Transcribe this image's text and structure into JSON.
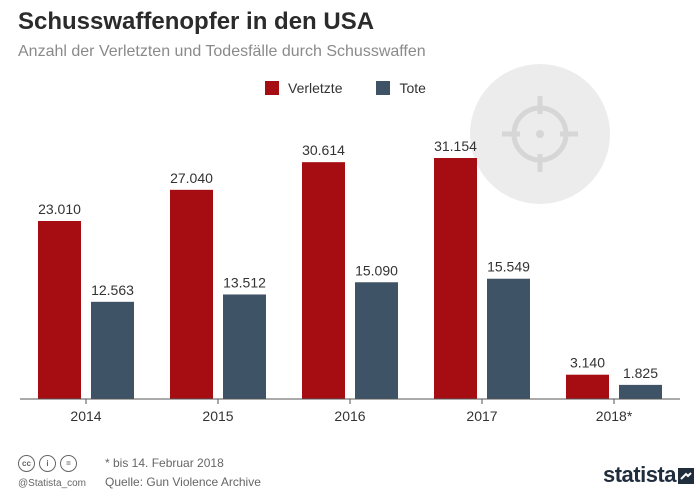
{
  "header": {
    "title": "Schusswaffenopfer in den USA",
    "subtitle": "Anzahl der Verletzten und Todesfälle durch Schusswaffen"
  },
  "colors": {
    "verletzte": "#a50d13",
    "tote": "#3e5366",
    "axis": "#555555",
    "watermark": "#e8e8e8"
  },
  "chart_data": {
    "type": "bar",
    "categories": [
      "2014",
      "2015",
      "2016",
      "2017",
      "2018*"
    ],
    "series": [
      {
        "name": "Verletzte",
        "values": [
          23010,
          27040,
          30614,
          31154,
          3140
        ],
        "labels": [
          "23.010",
          "27.040",
          "30.614",
          "31.154",
          "3.140"
        ]
      },
      {
        "name": "Tote",
        "values": [
          12563,
          13512,
          15090,
          15549,
          1825
        ],
        "labels": [
          "12.563",
          "13.512",
          "15.090",
          "15.549",
          "1.825"
        ]
      }
    ],
    "title": "Schusswaffenopfer in den USA",
    "subtitle": "Anzahl der Verletzten und Todesfälle durch Schusswaffen",
    "xlabel": "",
    "ylabel": "",
    "ylim": [
      0,
      31154
    ],
    "grid": false,
    "legend_position": "top-center"
  },
  "footer": {
    "note": "* bis 14. Februar 2018",
    "source": "Quelle: Gun Violence Archive",
    "handle": "@Statista_com",
    "brand": "statista",
    "license_icons": [
      "cc",
      "by",
      "nd"
    ]
  }
}
